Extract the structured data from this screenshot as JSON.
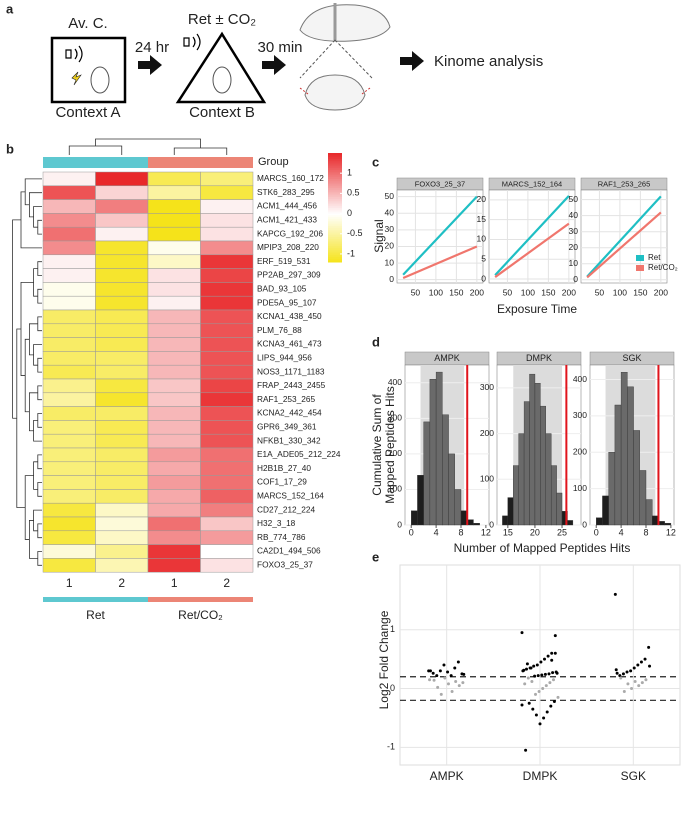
{
  "panel_labels": [
    "a",
    "b",
    "c",
    "d",
    "e"
  ],
  "diagram": {
    "step1_title": "Av. C.",
    "step1_label": "Context A",
    "arrow1": "24 hr",
    "step2_title": "Ret ± CO₂",
    "step2_label": "Context B",
    "arrow2": "30 min",
    "final": "Kinome analysis"
  },
  "chart_data": [
    {
      "type": "heatmap",
      "group_label": "Group",
      "groups": [
        {
          "name": "Ret",
          "color": "#5ec8d0",
          "columns": [
            "1",
            "2"
          ]
        },
        {
          "name": "Ret/CO₂",
          "color": "#ec8576",
          "columns": [
            "1",
            "2"
          ]
        }
      ],
      "rows": [
        "MARCS_160_172",
        "STK6_283_295",
        "ACM1_444_456",
        "ACM1_421_433",
        "KAPCG_192_206",
        "MPIP3_208_220",
        "ERF_519_531",
        "PP2AB_297_309",
        "BAD_93_105",
        "PDE5A_95_107",
        "KCNA1_438_450",
        "PLM_76_88",
        "KCNA3_461_473",
        "LIPS_944_956",
        "NOS3_1171_1183",
        "FRAP_2443_2455",
        "RAF1_253_265",
        "KCNA2_442_454",
        "GPR6_349_361",
        "NFKB1_330_342",
        "E1A_ADE05_212_224",
        "H2B1B_27_40",
        "COF1_17_29",
        "MARCS_152_164",
        "CD27_212_224",
        "H32_3_18",
        "RB_774_786",
        "CA2D1_494_506",
        "FOXO3_25_37"
      ],
      "values": [
        [
          0.1,
          1.5,
          -0.9,
          -0.7
        ],
        [
          1.2,
          0.3,
          -0.5,
          -1.0
        ],
        [
          0.5,
          0.9,
          -1.2,
          0.1
        ],
        [
          0.8,
          0.4,
          -1.2,
          0.2
        ],
        [
          1.0,
          0.1,
          -1.2,
          0.2
        ],
        [
          0.8,
          -1.1,
          -0.1,
          0.8
        ],
        [
          0.1,
          -1.1,
          -0.3,
          1.4
        ],
        [
          0.1,
          -1.1,
          0.2,
          1.3
        ],
        [
          -0.1,
          -1.1,
          0.2,
          1.4
        ],
        [
          -0.1,
          -1.1,
          0.1,
          1.4
        ],
        [
          -0.8,
          -0.9,
          0.5,
          1.2
        ],
        [
          -0.8,
          -0.9,
          0.5,
          1.2
        ],
        [
          -0.8,
          -0.9,
          0.5,
          1.2
        ],
        [
          -0.8,
          -0.8,
          0.5,
          1.2
        ],
        [
          -0.9,
          -0.8,
          0.5,
          1.2
        ],
        [
          -0.6,
          -1.0,
          0.4,
          1.3
        ],
        [
          -0.5,
          -1.1,
          0.4,
          1.4
        ],
        [
          -0.8,
          -0.8,
          0.5,
          1.2
        ],
        [
          -0.7,
          -0.9,
          0.5,
          1.2
        ],
        [
          -0.7,
          -0.9,
          0.5,
          1.2
        ],
        [
          -0.7,
          -0.8,
          0.7,
          1.0
        ],
        [
          -0.7,
          -0.8,
          0.6,
          1.0
        ],
        [
          -0.7,
          -0.8,
          0.7,
          1.0
        ],
        [
          -0.7,
          -0.8,
          0.6,
          1.1
        ],
        [
          -1.0,
          -0.3,
          0.6,
          0.9
        ],
        [
          -1.1,
          -0.2,
          1.0,
          0.4
        ],
        [
          -1.0,
          -0.3,
          0.8,
          0.7
        ],
        [
          -0.2,
          -0.6,
          1.4,
          0.0
        ],
        [
          -1.0,
          -0.4,
          1.4,
          0.2
        ]
      ],
      "colorbar": {
        "lim": [
          -1.2,
          1.5
        ],
        "ticks": [
          1,
          0.5,
          0,
          -0.5,
          -1
        ],
        "colors": [
          "#f5e31a",
          "#ffffff",
          "#e8282a"
        ]
      }
    },
    {
      "type": "line",
      "xlabel": "Exposure Time",
      "ylabel": "Signal",
      "x": [
        20,
        200
      ],
      "xlim": [
        5,
        215
      ],
      "xticks": [
        50,
        100,
        150,
        200
      ],
      "series": [
        {
          "name": "Ret",
          "color": "#1fbfc4"
        },
        {
          "name": "Ret/CO₂",
          "color": "#f0766d"
        }
      ],
      "facets": [
        {
          "title": "FOXO3_25_37",
          "ylim": [
            -2,
            54
          ],
          "yticks": [
            0,
            10,
            20,
            30,
            40,
            50
          ],
          "values": [
            [
              3,
              50
            ],
            [
              1,
              20
            ]
          ]
        },
        {
          "title": "MARCS_152_164",
          "ylim": [
            -1,
            22.5
          ],
          "yticks": [
            0,
            5,
            10,
            15,
            20
          ],
          "values": [
            [
              1,
              21
            ],
            [
              0.5,
              14
            ]
          ]
        },
        {
          "title": "RAF1_253_265",
          "ylim": [
            -2,
            56
          ],
          "yticks": [
            0,
            10,
            20,
            30,
            40,
            50
          ],
          "values": [
            [
              2,
              52
            ],
            [
              1.5,
              42
            ]
          ]
        }
      ]
    },
    {
      "type": "histogram",
      "xlabel": "Number of Mapped Peptides Hits",
      "ylabel": [
        "Cumulative Sum of",
        "Mapped Peptides Hits"
      ],
      "facets": [
        {
          "title": "AMPK",
          "xlim": [
            -1,
            12.5
          ],
          "xticks": [
            0,
            4,
            8,
            12
          ],
          "ylim": [
            0,
            450
          ],
          "yticks": [
            0,
            100,
            200,
            300,
            400
          ],
          "bins": [
            0,
            1,
            2,
            3,
            4,
            5,
            6,
            7,
            8,
            9,
            10,
            11
          ],
          "counts": [
            40,
            140,
            290,
            410,
            430,
            310,
            200,
            100,
            40,
            15,
            5
          ],
          "interval": [
            1.5,
            8.5
          ],
          "observed": 9
        },
        {
          "title": "DMPK",
          "xlim": [
            13,
            28.5
          ],
          "xticks": [
            15,
            20,
            25
          ],
          "ylim": [
            0,
            350
          ],
          "yticks": [
            0,
            100,
            200,
            300
          ],
          "bins": [
            14,
            15,
            16,
            17,
            18,
            19,
            20,
            21,
            22,
            23,
            24,
            25,
            26,
            27
          ],
          "counts": [
            20,
            60,
            130,
            200,
            270,
            330,
            310,
            260,
            200,
            130,
            70,
            30,
            10
          ],
          "interval": [
            16,
            25
          ],
          "observed": 25.8
        },
        {
          "title": "SGK",
          "xlim": [
            -1,
            12.5
          ],
          "xticks": [
            0,
            4,
            8,
            12
          ],
          "ylim": [
            0,
            440
          ],
          "yticks": [
            0,
            100,
            200,
            300,
            400
          ],
          "bins": [
            0,
            1,
            2,
            3,
            4,
            5,
            6,
            7,
            8,
            9,
            10,
            11,
            12
          ],
          "counts": [
            20,
            80,
            200,
            330,
            420,
            380,
            260,
            150,
            70,
            25,
            10,
            5
          ],
          "interval": [
            1.5,
            9.5
          ],
          "observed": 10
        }
      ]
    },
    {
      "type": "strip",
      "ylabel": "Log2 Fold Change",
      "categories": [
        "AMPK",
        "DMPK",
        "SGK"
      ],
      "ylim": [
        -1.3,
        2.1
      ],
      "yticks": [
        -1,
        0,
        1
      ],
      "threshold_lines": [
        0.2,
        -0.2
      ],
      "values": [
        [
          0.3,
          0.25,
          0.45,
          0.35,
          0.22,
          0.28,
          0.4,
          0.3,
          0.22,
          0.26,
          0.15,
          0.1,
          0.05,
          0.12,
          -0.05,
          0.08,
          0.18,
          -0.1,
          0.02,
          0.14,
          0.3,
          0.24
        ],
        [
          0.95,
          0.9,
          0.6,
          0.55,
          0.5,
          0.45,
          0.4,
          0.38,
          0.35,
          0.33,
          0.3,
          0.28,
          0.27,
          0.25,
          0.24,
          0.23,
          0.22,
          0.21,
          0.35,
          0.42,
          0.31,
          0.26,
          0.15,
          0.1,
          0.05,
          0.0,
          -0.05,
          -0.1,
          0.12,
          0.18,
          0.08,
          -0.15,
          -0.22,
          -0.3,
          -0.4,
          -0.5,
          -0.6,
          -0.45,
          -0.35,
          -0.25,
          -1.05,
          -0.28,
          0.6,
          0.48
        ],
        [
          1.6,
          0.7,
          0.5,
          0.45,
          0.4,
          0.35,
          0.3,
          0.28,
          0.25,
          0.22,
          0.32,
          0.38,
          0.15,
          0.1,
          0.05,
          0.12,
          0.0,
          0.08,
          -0.05,
          0.18,
          0.26
        ]
      ]
    }
  ]
}
